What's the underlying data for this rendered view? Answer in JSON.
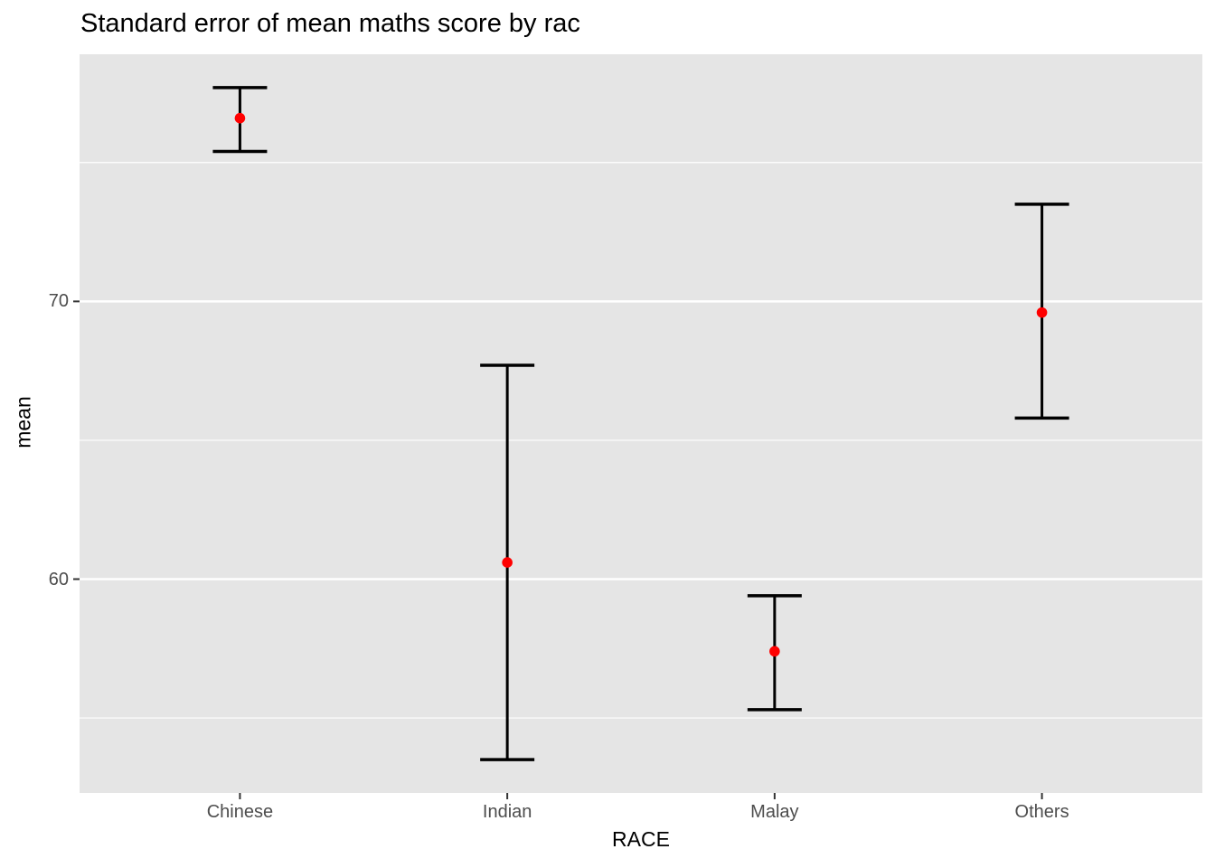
{
  "chart_data": {
    "type": "scatter",
    "subtype": "point-with-errorbars",
    "title": "Standard error of mean maths score by rac",
    "xlabel": "RACE",
    "ylabel": "mean",
    "categories": [
      "Chinese",
      "Indian",
      "Malay",
      "Others"
    ],
    "series": [
      {
        "name": "mean",
        "values": [
          76.6,
          60.6,
          57.4,
          69.6
        ]
      },
      {
        "name": "lower_error",
        "values": [
          75.4,
          53.5,
          55.3,
          65.8
        ]
      },
      {
        "name": "upper_error",
        "values": [
          77.7,
          67.7,
          59.4,
          73.5
        ]
      }
    ],
    "ylim": [
      52.3,
      78.9
    ],
    "y_major_ticks": [
      60,
      70
    ],
    "y_minor_gridlines": [
      55,
      65,
      75
    ],
    "grid": "on",
    "legend": "none",
    "colors": {
      "point": "#FF0000",
      "error_bar": "#000000",
      "panel_background": "#E5E5E5",
      "gridline": "#FFFFFF",
      "tick_mark": "#333333",
      "tick_label": "#4D4D4D",
      "axis_title": "#000000",
      "title": "#000000"
    }
  }
}
